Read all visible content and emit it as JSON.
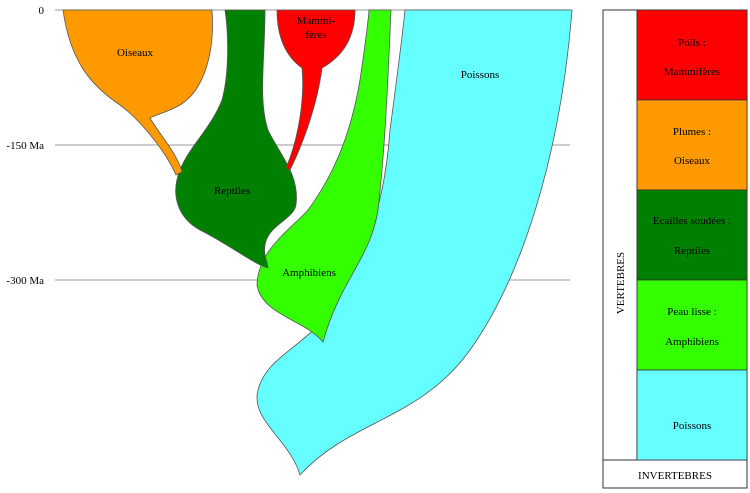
{
  "time_axis": {
    "ticks": [
      {
        "label": "0"
      },
      {
        "label": "-150 Ma"
      },
      {
        "label": "-300 Ma"
      }
    ]
  },
  "groups": {
    "oiseaux": {
      "label": "Oiseaux",
      "color": "#FF9900"
    },
    "reptiles": {
      "label": "Reptiles",
      "color": "#008000"
    },
    "mammiferes": {
      "label_line1": "Mammi-",
      "label_line2": "fères",
      "color": "#FF0000"
    },
    "amphibiens": {
      "label": "Amphibiens",
      "color": "#33FF00"
    },
    "poissons": {
      "label": "Poissons",
      "color": "#66FFFF"
    }
  },
  "legend": {
    "vertebres_label": "VERTEBRES",
    "invertebres_label": "INVERTEBRES",
    "cells": [
      {
        "line1": "Poils :",
        "line2": "Mammifères",
        "color": "#FF0000"
      },
      {
        "line1": "Plumes :",
        "line2": "Oiseaux",
        "color": "#FF9900"
      },
      {
        "line1": "Ecailles soudées :",
        "line2": "Reptiles",
        "color": "#008000"
      },
      {
        "line1": "Peau lisse :",
        "line2": "Amphibiens",
        "color": "#33FF00"
      },
      {
        "line1": "",
        "line2": "Poissons",
        "color": "#66FFFF"
      }
    ]
  }
}
